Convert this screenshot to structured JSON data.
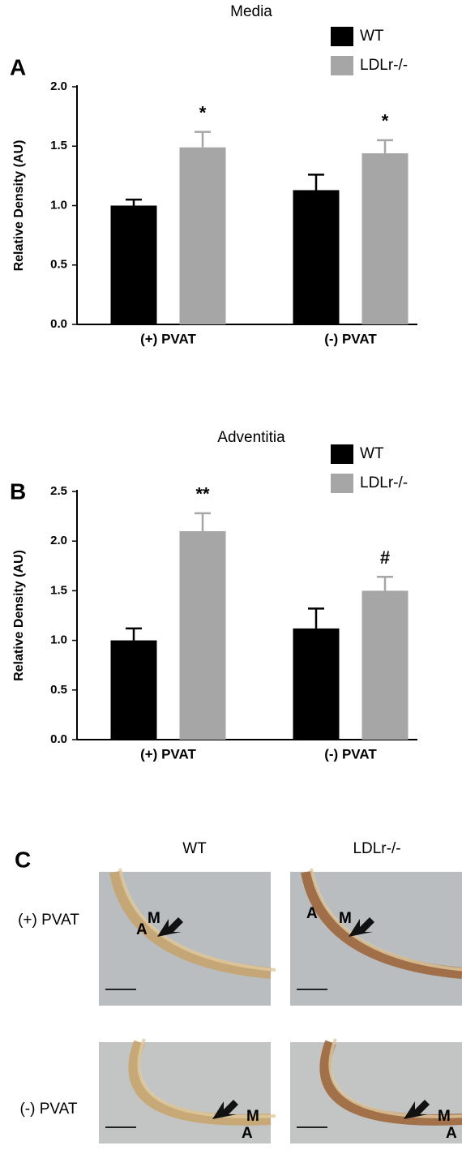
{
  "chart_data": [
    {
      "type": "bar",
      "panel_label": "A",
      "title": "Media",
      "y_label": "Relative Density  (AU)",
      "categories": [
        "(+) PVAT",
        "(-) PVAT"
      ],
      "series": [
        {
          "name": "WT",
          "color": "#000000",
          "values": [
            1.0,
            1.13
          ],
          "errors": [
            0.05,
            0.13
          ]
        },
        {
          "name": "LDLr-/-",
          "color": "#a6a6a6",
          "values": [
            1.49,
            1.44
          ],
          "errors": [
            0.13,
            0.11
          ],
          "annotations": [
            "*",
            "*"
          ]
        }
      ],
      "ylim": [
        0,
        2.0
      ],
      "yticks": [
        {
          "value": 0,
          "label": "0.0"
        },
        {
          "value": 0.5,
          "label": "0.5"
        },
        {
          "value": 1,
          "label": "1.0"
        },
        {
          "value": 1.5,
          "label": "1.5"
        },
        {
          "value": 2,
          "label": "2.0"
        }
      ]
    },
    {
      "type": "bar",
      "panel_label": "B",
      "title": "Adventitia",
      "y_label": "Relative Density (AU)",
      "categories": [
        "(+) PVAT",
        "(-) PVAT"
      ],
      "series": [
        {
          "name": "WT",
          "color": "#000000",
          "values": [
            1.0,
            1.12
          ],
          "errors": [
            0.12,
            0.2
          ]
        },
        {
          "name": "LDLr-/-",
          "color": "#a6a6a6",
          "values": [
            2.1,
            1.5
          ],
          "errors": [
            0.18,
            0.14
          ],
          "annotations": [
            "**",
            "#"
          ]
        }
      ],
      "ylim": [
        0,
        2.5
      ],
      "yticks": [
        {
          "value": 0,
          "label": "0.0"
        },
        {
          "value": 0.5,
          "label": "0.5"
        },
        {
          "value": 1,
          "label": "1.0"
        },
        {
          "value": 1.5,
          "label": "1.5"
        },
        {
          "value": 2,
          "label": "2.0"
        },
        {
          "value": 2.5,
          "label": "2.5"
        }
      ]
    }
  ],
  "panel_c": {
    "panel_label": "C",
    "columns": [
      "WT",
      "LDLr-/-"
    ],
    "rows": [
      "(+) PVAT",
      "(-) PVAT"
    ],
    "images": [
      {
        "labels": [
          "M",
          "A"
        ]
      },
      {
        "labels": [
          "M",
          "A"
        ]
      },
      {
        "labels": [
          "M",
          "A"
        ]
      },
      {
        "labels": [
          "M",
          "A"
        ]
      }
    ]
  }
}
